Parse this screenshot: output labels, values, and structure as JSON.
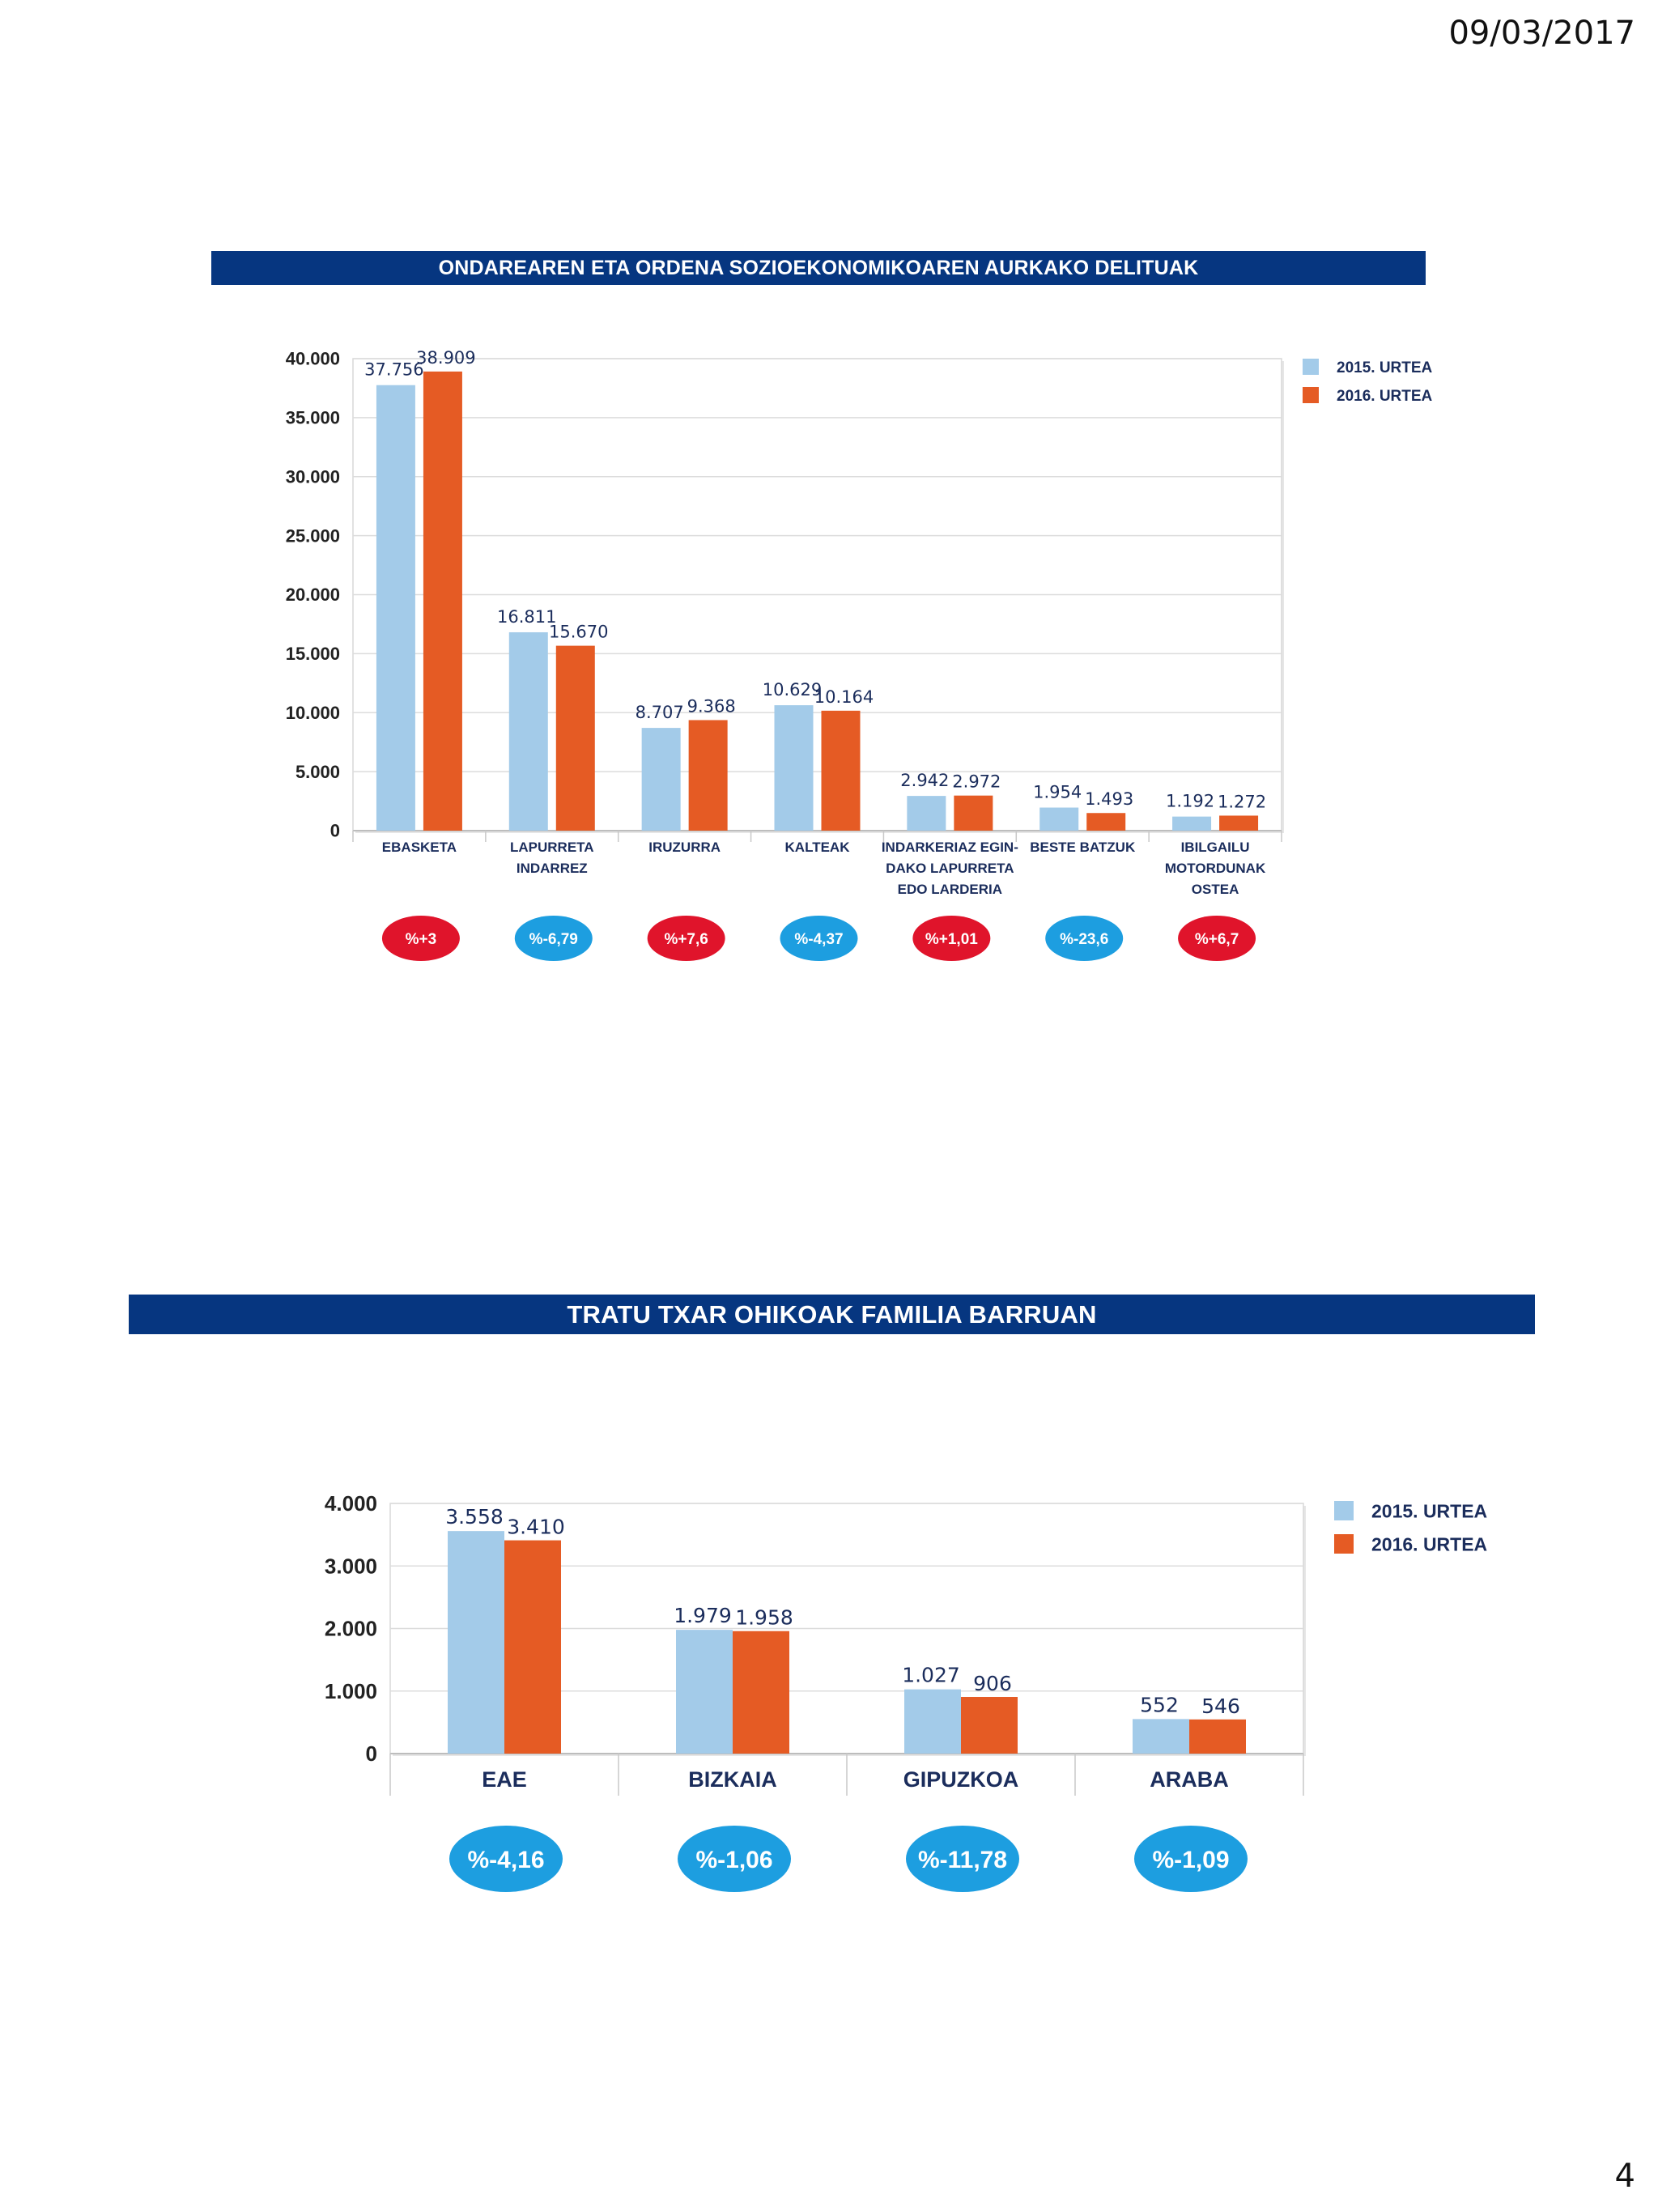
{
  "header": {
    "date": "09/03/2017"
  },
  "footer": {
    "page_number": "4"
  },
  "colors": {
    "banner": "#063680",
    "series_2015": "#a3cbe9",
    "series_2016": "#e55b24",
    "increase": "#e0142b",
    "decrease": "#1d9ee0"
  },
  "chart_data": [
    {
      "type": "bar",
      "title": "ONDAREAREN ETA ORDENA SOZIOEKONOMIKOAREN AURKAKO DELITUAK",
      "categories": [
        [
          "EBASKETA"
        ],
        [
          "LAPURRETA",
          "INDARREZ"
        ],
        [
          "IRUZURRA"
        ],
        [
          "KALTEAK"
        ],
        [
          "INDARKERIAZ EGIN-",
          "DAKO LAPURRETA",
          "EDO LARDERIA"
        ],
        [
          "BESTE BATZUK"
        ],
        [
          "IBILGAILU",
          "MOTORDUNAK",
          "OSTEA"
        ]
      ],
      "series": [
        {
          "name": "2015. URTEA",
          "values": [
            37756,
            16811,
            8707,
            10629,
            2942,
            1954,
            1192
          ],
          "labels": [
            "37.756",
            "16.811",
            "8.707",
            "10.629",
            "2.942",
            "1.954",
            "1.192"
          ]
        },
        {
          "name": "2016. URTEA",
          "values": [
            38909,
            15670,
            9368,
            10164,
            2972,
            1493,
            1272
          ],
          "labels": [
            "38.909",
            "15.670",
            "9.368",
            "10.164",
            "2.972",
            "1.493",
            "1.272"
          ]
        }
      ],
      "yticks": [
        "0",
        "5.000",
        "10.000",
        "15.000",
        "20.000",
        "25.000",
        "30.000",
        "35.000",
        "40.000"
      ],
      "ylim": [
        0,
        40000
      ],
      "changes": [
        {
          "label": "%+3",
          "direction": "up"
        },
        {
          "label": "%-6,79",
          "direction": "down"
        },
        {
          "label": "%+7,6",
          "direction": "up"
        },
        {
          "label": "%-4,37",
          "direction": "down"
        },
        {
          "label": "%+1,01",
          "direction": "up"
        },
        {
          "label": "%-23,6",
          "direction": "down"
        },
        {
          "label": "%+6,7",
          "direction": "up"
        }
      ],
      "legend_position": "top-right",
      "grid": true
    },
    {
      "type": "bar",
      "title": "TRATU TXAR OHIKOAK FAMILIA BARRUAN",
      "categories": [
        [
          "EAE"
        ],
        [
          "BIZKAIA"
        ],
        [
          "GIPUZKOA"
        ],
        [
          "ARABA"
        ]
      ],
      "series": [
        {
          "name": "2015. URTEA",
          "values": [
            3558,
            1979,
            1027,
            552
          ],
          "labels": [
            "3.558",
            "1.979",
            "1.027",
            "552"
          ]
        },
        {
          "name": "2016. URTEA",
          "values": [
            3410,
            1958,
            906,
            546
          ],
          "labels": [
            "3.410",
            "1.958",
            "906",
            "546"
          ]
        }
      ],
      "yticks": [
        "0",
        "1.000",
        "2.000",
        "3.000",
        "4.000"
      ],
      "ylim": [
        0,
        4000
      ],
      "changes": [
        {
          "label": "%-4,16",
          "direction": "down"
        },
        {
          "label": "%-1,06",
          "direction": "down"
        },
        {
          "label": "%-11,78",
          "direction": "down"
        },
        {
          "label": "%-1,09",
          "direction": "down"
        }
      ],
      "legend_position": "top-right",
      "grid": true
    }
  ]
}
